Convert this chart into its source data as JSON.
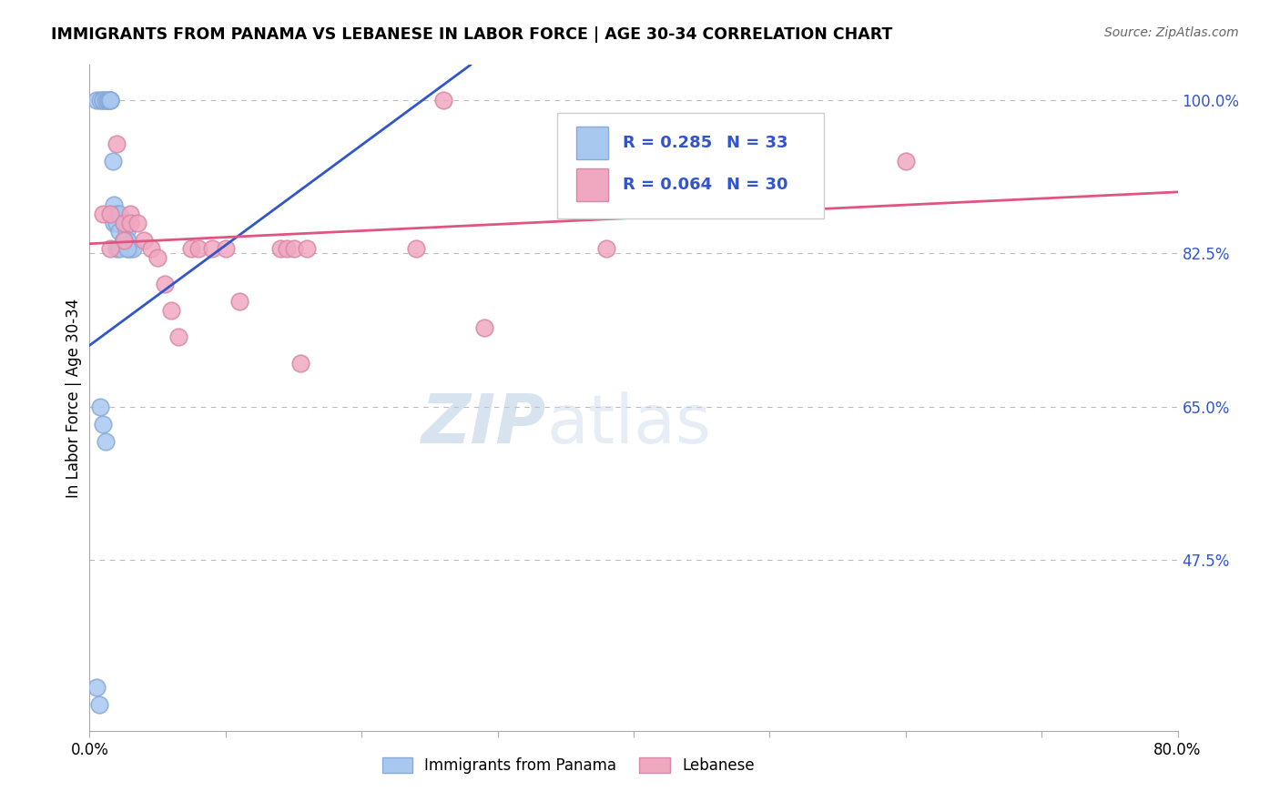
{
  "title": "IMMIGRANTS FROM PANAMA VS LEBANESE IN LABOR FORCE | AGE 30-34 CORRELATION CHART",
  "source": "Source: ZipAtlas.com",
  "ylabel": "In Labor Force | Age 30-34",
  "xlim": [
    0.0,
    0.8
  ],
  "ylim": [
    0.28,
    1.04
  ],
  "ytick_vals": [
    0.475,
    0.65,
    0.825,
    1.0
  ],
  "ytick_labels": [
    "47.5%",
    "65.0%",
    "82.5%",
    "100.0%"
  ],
  "xtick_vals": [
    0.0,
    0.1,
    0.2,
    0.3,
    0.4,
    0.5,
    0.6,
    0.7,
    0.8
  ],
  "xtick_labels": [
    "0.0%",
    "",
    "",
    "",
    "",
    "",
    "",
    "",
    "80.0%"
  ],
  "panama_color": "#a8c8f0",
  "panama_edge_color": "#88aad8",
  "lebanese_color": "#f0a8c0",
  "lebanese_edge_color": "#d888a8",
  "panama_line_color": "#3355cc",
  "lebanese_line_color": "#e05580",
  "blue_label_color": "#3355cc",
  "legend_R1": "R = 0.285",
  "legend_N1": "N = 33",
  "legend_R2": "R = 0.064",
  "legend_N2": "N = 30",
  "panama_x": [
    0.005,
    0.008,
    0.01,
    0.01,
    0.012,
    0.013,
    0.014,
    0.015,
    0.015,
    0.015,
    0.017,
    0.018,
    0.018,
    0.02,
    0.02,
    0.022,
    0.022,
    0.025,
    0.025,
    0.027,
    0.028,
    0.028,
    0.03,
    0.032,
    0.008,
    0.01,
    0.012,
    0.005,
    0.007,
    0.02,
    0.022,
    0.025,
    0.028
  ],
  "panama_y": [
    1.0,
    1.0,
    1.0,
    1.0,
    1.0,
    1.0,
    1.0,
    1.0,
    1.0,
    1.0,
    0.93,
    0.88,
    0.86,
    0.87,
    0.86,
    0.87,
    0.85,
    0.86,
    0.84,
    0.85,
    0.84,
    0.83,
    0.83,
    0.83,
    0.65,
    0.63,
    0.61,
    0.33,
    0.31,
    0.83,
    0.83,
    0.84,
    0.83
  ],
  "lebanese_x": [
    0.01,
    0.015,
    0.02,
    0.025,
    0.025,
    0.03,
    0.03,
    0.035,
    0.04,
    0.045,
    0.05,
    0.055,
    0.06,
    0.065,
    0.075,
    0.08,
    0.09,
    0.1,
    0.11,
    0.14,
    0.145,
    0.15,
    0.155,
    0.16,
    0.24,
    0.26,
    0.29,
    0.38,
    0.6,
    0.015
  ],
  "lebanese_y": [
    0.87,
    0.87,
    0.95,
    0.86,
    0.84,
    0.87,
    0.86,
    0.86,
    0.84,
    0.83,
    0.82,
    0.79,
    0.76,
    0.73,
    0.83,
    0.83,
    0.83,
    0.83,
    0.77,
    0.83,
    0.83,
    0.83,
    0.7,
    0.83,
    0.83,
    1.0,
    0.74,
    0.83,
    0.93,
    0.83
  ],
  "panama_trend_x": [
    0.0,
    0.28
  ],
  "panama_trend_y": [
    0.72,
    1.04
  ],
  "lebanese_trend_x": [
    0.0,
    0.8
  ],
  "lebanese_trend_y": [
    0.836,
    0.895
  ]
}
